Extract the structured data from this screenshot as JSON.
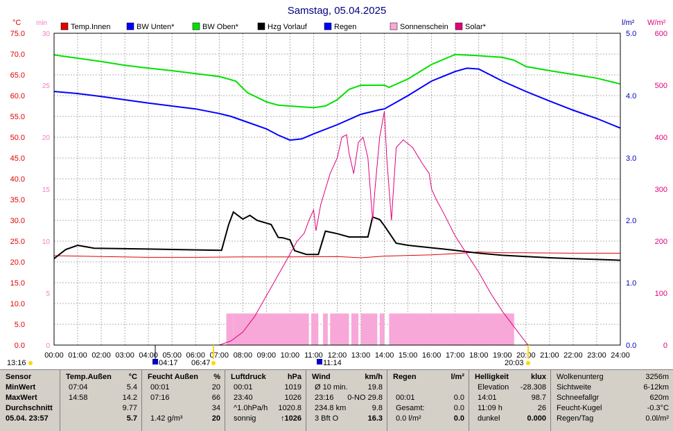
{
  "title": "Samstag, 05.04.2025",
  "units": {
    "left_c": "°C",
    "left_min": "min",
    "right_lm": "l/m²",
    "right_wm": "W/m²"
  },
  "legend": [
    {
      "label": "Temp.Innen",
      "color": "#e00000"
    },
    {
      "label": "BW Unten*",
      "color": "#0000ff"
    },
    {
      "label": "BW Oben*",
      "color": "#00e000"
    },
    {
      "label": "Hzg Vorlauf",
      "color": "#000000"
    },
    {
      "label": "Regen",
      "color": "#0000ff"
    },
    {
      "label": "Sonnenschein",
      "color": "#f8a8d8"
    },
    {
      "label": "Solar*",
      "color": "#e0007c"
    }
  ],
  "chart_data": {
    "type": "line",
    "title": "Samstag, 05.04.2025",
    "x_ticks": [
      "00:00",
      "01:00",
      "02:00",
      "03:00",
      "04:00",
      "05:00",
      "06:00",
      "07:00",
      "08:00",
      "09:00",
      "10:00",
      "11:00",
      "12:00",
      "13:00",
      "14:00",
      "15:00",
      "16:00",
      "17:00",
      "18:00",
      "19:00",
      "20:00",
      "21:00",
      "22:00",
      "23:00",
      "24:00"
    ],
    "axes": {
      "temp_c": {
        "range": [
          0,
          75
        ],
        "ticks": [
          "0.0",
          "5.0",
          "10.0",
          "15.0",
          "20.0",
          "25.0",
          "30.0",
          "35.0",
          "40.0",
          "45.0",
          "50.0",
          "55.0",
          "60.0",
          "65.0",
          "70.0",
          "75.0"
        ]
      },
      "minutes": {
        "range": [
          0,
          30
        ],
        "ticks": [
          "0",
          "5",
          "10",
          "15",
          "20",
          "25",
          "30"
        ]
      },
      "rain_lm2": {
        "range": [
          0,
          5
        ],
        "ticks": [
          "0.0",
          "1.0",
          "2.0",
          "3.0",
          "4.0",
          "5.0"
        ]
      },
      "solar_wm2": {
        "range": [
          0,
          600
        ],
        "ticks": [
          "0",
          "100",
          "200",
          "300",
          "400",
          "500",
          "600"
        ]
      }
    },
    "series": [
      {
        "name": "Temp.Innen",
        "axis": "temp_c",
        "color": "#e00000",
        "points": [
          [
            0,
            21.5
          ],
          [
            2,
            21.3
          ],
          [
            4,
            21.1
          ],
          [
            6,
            21.1
          ],
          [
            8,
            21.2
          ],
          [
            10,
            21.2
          ],
          [
            12,
            21.3
          ],
          [
            13,
            21.0
          ],
          [
            14,
            21.4
          ],
          [
            16,
            21.7
          ],
          [
            17,
            22.0
          ],
          [
            18,
            22.4
          ],
          [
            19,
            22.2
          ],
          [
            20,
            22.2
          ],
          [
            22,
            22.1
          ],
          [
            24,
            22.1
          ]
        ]
      },
      {
        "name": "BW Unten*",
        "axis": "temp_c",
        "color": "#0000ff",
        "points": [
          [
            0,
            61.0
          ],
          [
            1,
            60.5
          ],
          [
            2,
            59.8
          ],
          [
            3,
            59.0
          ],
          [
            4,
            58.2
          ],
          [
            5,
            57.5
          ],
          [
            6,
            56.8
          ],
          [
            7,
            55.7
          ],
          [
            7.5,
            55.0
          ],
          [
            8,
            54.0
          ],
          [
            9,
            52.0
          ],
          [
            9.5,
            50.5
          ],
          [
            10,
            49.3
          ],
          [
            10.5,
            49.6
          ],
          [
            11,
            50.8
          ],
          [
            12,
            53.0
          ],
          [
            13,
            55.5
          ],
          [
            13.8,
            56.6
          ],
          [
            14,
            56.8
          ],
          [
            15,
            60.0
          ],
          [
            16,
            63.5
          ],
          [
            17,
            65.8
          ],
          [
            17.5,
            66.6
          ],
          [
            18,
            66.4
          ],
          [
            19,
            63.5
          ],
          [
            20,
            61.0
          ],
          [
            21,
            58.7
          ],
          [
            22,
            56.5
          ],
          [
            23,
            54.5
          ],
          [
            24,
            52.2
          ]
        ]
      },
      {
        "name": "BW Oben*",
        "axis": "temp_c",
        "color": "#00e000",
        "points": [
          [
            0,
            69.8
          ],
          [
            1,
            69.0
          ],
          [
            2,
            68.2
          ],
          [
            3,
            67.3
          ],
          [
            4,
            66.6
          ],
          [
            5,
            66.0
          ],
          [
            6,
            65.3
          ],
          [
            7,
            64.6
          ],
          [
            7.7,
            63.5
          ],
          [
            8.2,
            60.7
          ],
          [
            9,
            58.5
          ],
          [
            9.5,
            57.7
          ],
          [
            10,
            57.5
          ],
          [
            11,
            57.1
          ],
          [
            11.5,
            57.5
          ],
          [
            12,
            59.0
          ],
          [
            12.5,
            61.5
          ],
          [
            13,
            62.5
          ],
          [
            13.7,
            62.5
          ],
          [
            14,
            62.5
          ],
          [
            14.2,
            62.0
          ],
          [
            15,
            64.0
          ],
          [
            16,
            67.5
          ],
          [
            17,
            69.9
          ],
          [
            18,
            69.6
          ],
          [
            19,
            69.2
          ],
          [
            19.5,
            68.5
          ],
          [
            20,
            67.0
          ],
          [
            21,
            66.0
          ],
          [
            22,
            65.1
          ],
          [
            23,
            64.2
          ],
          [
            24,
            62.8
          ]
        ]
      },
      {
        "name": "Hzg Vorlauf",
        "axis": "temp_c",
        "color": "#000000",
        "points": [
          [
            0,
            20.8
          ],
          [
            0.5,
            23.0
          ],
          [
            1,
            24.0
          ],
          [
            1.7,
            23.3
          ],
          [
            4,
            23.1
          ],
          [
            6,
            22.9
          ],
          [
            7.1,
            22.8
          ],
          [
            7.4,
            29.0
          ],
          [
            7.6,
            32.0
          ],
          [
            8,
            30.3
          ],
          [
            8.3,
            31.2
          ],
          [
            8.6,
            30.0
          ],
          [
            9.2,
            29.0
          ],
          [
            9.5,
            25.9
          ],
          [
            9.7,
            25.8
          ],
          [
            10,
            25.3
          ],
          [
            10.2,
            22.7
          ],
          [
            10.7,
            21.8
          ],
          [
            11.2,
            21.8
          ],
          [
            11.5,
            27.4
          ],
          [
            12,
            26.8
          ],
          [
            12.5,
            26.0
          ],
          [
            13,
            26.0
          ],
          [
            13.3,
            26.0
          ],
          [
            13.5,
            30.8
          ],
          [
            13.8,
            30.2
          ],
          [
            14,
            28.7
          ],
          [
            14.5,
            24.5
          ],
          [
            15,
            24.0
          ],
          [
            16,
            23.4
          ],
          [
            17,
            22.8
          ],
          [
            18,
            22.1
          ],
          [
            19,
            21.6
          ],
          [
            20,
            21.3
          ],
          [
            21,
            21.0
          ],
          [
            22,
            20.8
          ],
          [
            23,
            20.6
          ],
          [
            24,
            20.4
          ]
        ]
      },
      {
        "name": "Solar*",
        "axis": "solar_wm2",
        "color": "#e0007c",
        "points": [
          [
            7.0,
            0
          ],
          [
            7.5,
            8
          ],
          [
            8,
            25
          ],
          [
            8.5,
            55
          ],
          [
            9,
            95
          ],
          [
            9.5,
            135
          ],
          [
            10,
            175
          ],
          [
            10.3,
            200
          ],
          [
            10.6,
            215
          ],
          [
            10.8,
            240
          ],
          [
            11.0,
            260
          ],
          [
            11.1,
            220
          ],
          [
            11.3,
            270
          ],
          [
            11.5,
            300
          ],
          [
            11.7,
            330
          ],
          [
            12,
            360
          ],
          [
            12.2,
            400
          ],
          [
            12.4,
            405
          ],
          [
            12.5,
            370
          ],
          [
            12.7,
            330
          ],
          [
            12.9,
            390
          ],
          [
            13.1,
            400
          ],
          [
            13.3,
            360
          ],
          [
            13.5,
            240
          ],
          [
            13.6,
            300
          ],
          [
            13.8,
            400
          ],
          [
            14,
            450
          ],
          [
            14.1,
            360
          ],
          [
            14.3,
            240
          ],
          [
            14.5,
            380
          ],
          [
            14.8,
            395
          ],
          [
            15.2,
            380
          ],
          [
            15.6,
            350
          ],
          [
            15.9,
            330
          ],
          [
            16,
            300
          ],
          [
            16.2,
            280
          ],
          [
            16.5,
            255
          ],
          [
            17,
            210
          ],
          [
            17.5,
            175
          ],
          [
            18,
            140
          ],
          [
            18.5,
            100
          ],
          [
            19,
            65
          ],
          [
            19.5,
            35
          ],
          [
            20,
            5
          ],
          [
            20.1,
            0
          ]
        ]
      }
    ],
    "sunshine_minutes": [
      [
        7.3,
        7.6
      ],
      [
        7.6,
        10.8
      ],
      [
        10.9,
        11.2
      ],
      [
        11.4,
        11.6
      ],
      [
        11.7,
        12.5
      ],
      [
        12.6,
        12.9
      ],
      [
        13.0,
        13.7
      ],
      [
        13.8,
        14.0
      ],
      [
        14.2,
        19.5
      ]
    ],
    "sunrise_sunset": {
      "sunrise": "06:47",
      "sunset": "20:03",
      "moon": "13:16",
      "rain_start": "04:17",
      "rain_end": "11:14"
    }
  },
  "table": {
    "sensor": {
      "hdr": "Sensor",
      "rows": [
        "MinWert",
        "MaxWert",
        "Durchschnitt",
        "05.04. 23:57"
      ]
    },
    "temp": {
      "hdr": "Temp.Außen",
      "unit": "°C",
      "rows": [
        [
          "07:04",
          "5.4"
        ],
        [
          "14:58",
          "14.2"
        ],
        [
          "",
          "9.77"
        ],
        [
          "",
          "5.7"
        ]
      ]
    },
    "feucht": {
      "hdr": "Feucht Außen",
      "unit": "%",
      "rows": [
        [
          "00:01",
          "20"
        ],
        [
          "07:16",
          "66"
        ],
        [
          "",
          "34"
        ],
        [
          "1.42 g/m³",
          "20"
        ]
      ]
    },
    "luft": {
      "hdr": "Luftdruck",
      "unit": "hPa",
      "rows": [
        [
          "00:01",
          "1019"
        ],
        [
          "23:40",
          "1026"
        ],
        [
          "^1.0hPa/h",
          "1020.8"
        ],
        [
          "sonnig",
          "↑1026"
        ]
      ]
    },
    "wind": {
      "hdr": "Wind",
      "unit": "km/h",
      "rows": [
        [
          "Ø 10 min.",
          "19.8"
        ],
        [
          "23:16",
          "0-NO 29.8"
        ],
        [
          "234.8 km",
          "9.8"
        ],
        [
          "3 Bft O",
          "16.3"
        ]
      ]
    },
    "regen": {
      "hdr": "Regen",
      "unit": "l/m²",
      "rows": [
        [
          "",
          "",
          ""
        ],
        [
          "00:01",
          "0.0"
        ],
        [
          "Gesamt:",
          "0.0"
        ],
        [
          "0.0 l/m²",
          "0.0"
        ]
      ]
    },
    "hell": {
      "hdr": "Helligkeit",
      "unit": "klux",
      "rows": [
        [
          "Elevation",
          "-28.308"
        ],
        [
          "14:01",
          "98.7"
        ],
        [
          "11:09 h",
          "26"
        ],
        [
          "dunkel",
          "0.000"
        ]
      ]
    },
    "misc": {
      "rows": [
        [
          "Wolkenunterg",
          "3256m"
        ],
        [
          "Sichtweite",
          "6-12km"
        ],
        [
          "Schneefallgr",
          "620m"
        ],
        [
          "Feucht-Kugel",
          "-0.3°C"
        ],
        [
          "Regen/Tag",
          "0.0l/m²"
        ]
      ]
    }
  }
}
